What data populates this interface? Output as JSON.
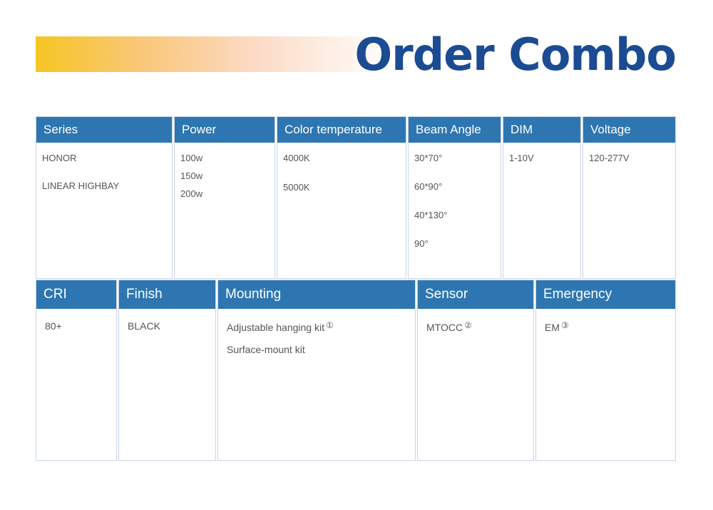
{
  "title": "Order Combo",
  "table1": [
    {
      "header": "Series",
      "items": [
        "HONOR",
        "LINEAR HIGHBAY"
      ]
    },
    {
      "header": "Power",
      "items": [
        "100w",
        "150w",
        "200w"
      ]
    },
    {
      "header": "Color temperature",
      "items": [
        "4000K",
        "5000K"
      ]
    },
    {
      "header": "Beam Angle",
      "items": [
        "30*70°",
        "60*90°",
        "40*130°",
        "90°"
      ]
    },
    {
      "header": "DIM",
      "items": [
        "1-10V"
      ]
    },
    {
      "header": "Voltage",
      "items": [
        "120-277V"
      ]
    }
  ],
  "table2": [
    {
      "header": "CRI",
      "items": [
        "80+"
      ]
    },
    {
      "header": "Finish",
      "items": [
        "BLACK"
      ]
    },
    {
      "header": "Mounting",
      "items": [
        "Adjustable hanging kit",
        "Surface-mount kit"
      ],
      "notes": [
        "①"
      ]
    },
    {
      "header": "Sensor",
      "items": [
        "MTOCC"
      ],
      "notes": [
        "②"
      ]
    },
    {
      "header": "Emergency",
      "items": [
        "EM"
      ],
      "notes": [
        "③"
      ]
    }
  ],
  "colors": {
    "header": "#2e76b1",
    "title": "#1b4b93"
  }
}
